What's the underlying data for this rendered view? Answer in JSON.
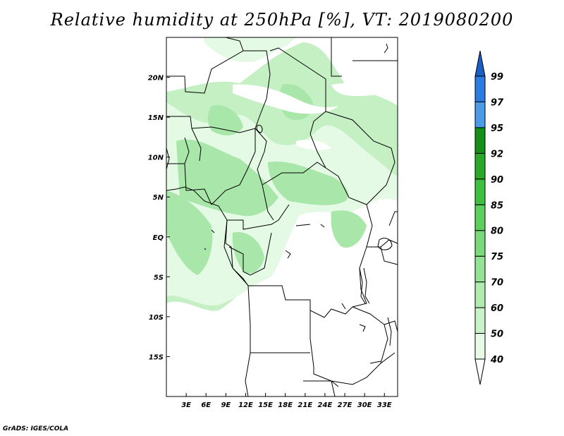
{
  "title": "Relative humidity at 250hPa [%], VT: 2019080200",
  "credit": "GrADS: IGES/COLA",
  "map": {
    "lon_range": [
      0,
      35
    ],
    "lat_range": [
      -20,
      25
    ],
    "lon_ticks": [
      "3E",
      "6E",
      "9E",
      "12E",
      "15E",
      "18E",
      "21E",
      "24E",
      "27E",
      "30E",
      "33E"
    ],
    "lat_ticks": [
      "20N",
      "15N",
      "10N",
      "5N",
      "EQ",
      "5S",
      "10S",
      "15S"
    ]
  },
  "colorbar": {
    "levels": [
      "40",
      "50",
      "60",
      "70",
      "75",
      "80",
      "85",
      "90",
      "92",
      "95",
      "97",
      "99"
    ],
    "colors": [
      "#ffffff",
      "#e6fbe6",
      "#c9f2c9",
      "#b0ecb0",
      "#94e394",
      "#78da78",
      "#5ccf5c",
      "#3fbf3f",
      "#2aa82a",
      "#158f15",
      "#4a9be8",
      "#2b7be0",
      "#1a5fc8"
    ]
  },
  "field_color": "#bdeebd"
}
